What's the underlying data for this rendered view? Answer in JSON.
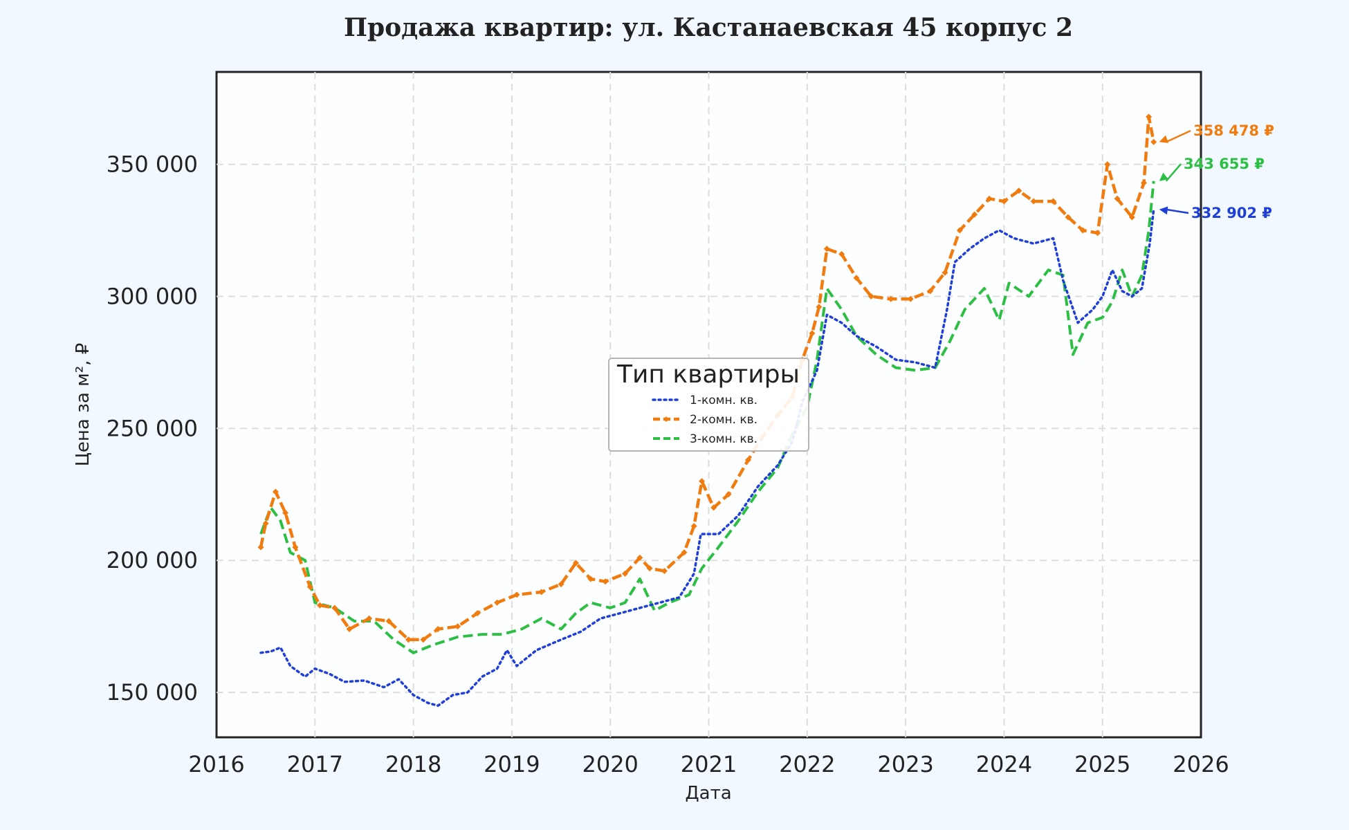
{
  "chart_data": {
    "type": "line",
    "title": "Продажа квартир: ул. Кастанаевская 45 корпус 2",
    "xlabel": "Дата",
    "ylabel": "Цена за м², ₽",
    "xlim": [
      2016,
      2026
    ],
    "ylim": [
      133000,
      385000
    ],
    "x_ticks": [
      "2016",
      "2017",
      "2018",
      "2019",
      "2020",
      "2021",
      "2022",
      "2023",
      "2024",
      "2025",
      "2026"
    ],
    "y_ticks": [
      150000,
      200000,
      250000,
      300000,
      350000
    ],
    "y_tick_labels": [
      "150 000",
      "200 000",
      "250 000",
      "300 000",
      "350 000"
    ],
    "grid": true,
    "legend": {
      "title": "Тип квартиры",
      "placement": "center"
    },
    "series": [
      {
        "name": "1-комн. кв.",
        "color": "#1f3fd6",
        "style": "dotted",
        "points": [
          [
            2016.45,
            165000
          ],
          [
            2016.55,
            165500
          ],
          [
            2016.65,
            167000
          ],
          [
            2016.75,
            160000
          ],
          [
            2016.9,
            156000
          ],
          [
            2017.0,
            159000
          ],
          [
            2017.15,
            157000
          ],
          [
            2017.3,
            154000
          ],
          [
            2017.5,
            154500
          ],
          [
            2017.7,
            152000
          ],
          [
            2017.85,
            155000
          ],
          [
            2018.0,
            149000
          ],
          [
            2018.15,
            146000
          ],
          [
            2018.25,
            145000
          ],
          [
            2018.4,
            149000
          ],
          [
            2018.55,
            150000
          ],
          [
            2018.7,
            156000
          ],
          [
            2018.85,
            159000
          ],
          [
            2018.95,
            166000
          ],
          [
            2019.05,
            160000
          ],
          [
            2019.25,
            166000
          ],
          [
            2019.5,
            170000
          ],
          [
            2019.7,
            173000
          ],
          [
            2019.9,
            178000
          ],
          [
            2020.1,
            180000
          ],
          [
            2020.3,
            182000
          ],
          [
            2020.5,
            184000
          ],
          [
            2020.7,
            186000
          ],
          [
            2020.85,
            195000
          ],
          [
            2020.92,
            210000
          ],
          [
            2021.1,
            210000
          ],
          [
            2021.3,
            217000
          ],
          [
            2021.5,
            228000
          ],
          [
            2021.7,
            236000
          ],
          [
            2021.85,
            245000
          ],
          [
            2021.95,
            260000
          ],
          [
            2022.1,
            272000
          ],
          [
            2022.2,
            293000
          ],
          [
            2022.35,
            290000
          ],
          [
            2022.5,
            285000
          ],
          [
            2022.7,
            281000
          ],
          [
            2022.9,
            276000
          ],
          [
            2023.1,
            275000
          ],
          [
            2023.3,
            273000
          ],
          [
            2023.42,
            295000
          ],
          [
            2023.5,
            313000
          ],
          [
            2023.65,
            318000
          ],
          [
            2023.8,
            322000
          ],
          [
            2023.95,
            325000
          ],
          [
            2024.1,
            322000
          ],
          [
            2024.3,
            320000
          ],
          [
            2024.5,
            322000
          ],
          [
            2024.6,
            306000
          ],
          [
            2024.75,
            290000
          ],
          [
            2024.9,
            295000
          ],
          [
            2025.0,
            300000
          ],
          [
            2025.1,
            310000
          ],
          [
            2025.2,
            302000
          ],
          [
            2025.3,
            300000
          ],
          [
            2025.4,
            303000
          ],
          [
            2025.48,
            320000
          ],
          [
            2025.52,
            332902
          ]
        ]
      },
      {
        "name": "2-комн. кв.",
        "color": "#f07c10",
        "style": "dashed-marker",
        "points": [
          [
            2016.45,
            205000
          ],
          [
            2016.5,
            214000
          ],
          [
            2016.6,
            226000
          ],
          [
            2016.7,
            218000
          ],
          [
            2016.8,
            205000
          ],
          [
            2016.95,
            190000
          ],
          [
            2017.05,
            183000
          ],
          [
            2017.2,
            182000
          ],
          [
            2017.35,
            174000
          ],
          [
            2017.55,
            178000
          ],
          [
            2017.75,
            177000
          ],
          [
            2017.95,
            170000
          ],
          [
            2018.1,
            170000
          ],
          [
            2018.25,
            174000
          ],
          [
            2018.45,
            175000
          ],
          [
            2018.65,
            180000
          ],
          [
            2018.85,
            184000
          ],
          [
            2019.05,
            187000
          ],
          [
            2019.3,
            188000
          ],
          [
            2019.5,
            191000
          ],
          [
            2019.65,
            199000
          ],
          [
            2019.8,
            193000
          ],
          [
            2019.95,
            192000
          ],
          [
            2020.15,
            195000
          ],
          [
            2020.3,
            201000
          ],
          [
            2020.4,
            197000
          ],
          [
            2020.55,
            196000
          ],
          [
            2020.75,
            203000
          ],
          [
            2020.85,
            213000
          ],
          [
            2020.93,
            230000
          ],
          [
            2021.05,
            220000
          ],
          [
            2021.2,
            225000
          ],
          [
            2021.4,
            238000
          ],
          [
            2021.55,
            247000
          ],
          [
            2021.7,
            255000
          ],
          [
            2021.85,
            262000
          ],
          [
            2021.95,
            276000
          ],
          [
            2022.05,
            286000
          ],
          [
            2022.12,
            296000
          ],
          [
            2022.2,
            318000
          ],
          [
            2022.35,
            316000
          ],
          [
            2022.5,
            307000
          ],
          [
            2022.65,
            300000
          ],
          [
            2022.85,
            299000
          ],
          [
            2023.05,
            299000
          ],
          [
            2023.25,
            302000
          ],
          [
            2023.4,
            309000
          ],
          [
            2023.55,
            325000
          ],
          [
            2023.7,
            331000
          ],
          [
            2023.85,
            337000
          ],
          [
            2024.0,
            336000
          ],
          [
            2024.15,
            340000
          ],
          [
            2024.3,
            336000
          ],
          [
            2024.5,
            336000
          ],
          [
            2024.65,
            330000
          ],
          [
            2024.8,
            325000
          ],
          [
            2024.95,
            324000
          ],
          [
            2025.05,
            350000
          ],
          [
            2025.15,
            337000
          ],
          [
            2025.3,
            330000
          ],
          [
            2025.42,
            343000
          ],
          [
            2025.47,
            368000
          ],
          [
            2025.52,
            358478
          ]
        ]
      },
      {
        "name": "3-комн. кв.",
        "color": "#2cbf43",
        "style": "dashed",
        "points": [
          [
            2016.45,
            210000
          ],
          [
            2016.55,
            220000
          ],
          [
            2016.65,
            215000
          ],
          [
            2016.75,
            203000
          ],
          [
            2016.9,
            200000
          ],
          [
            2017.0,
            184000
          ],
          [
            2017.2,
            182000
          ],
          [
            2017.4,
            177000
          ],
          [
            2017.6,
            177000
          ],
          [
            2017.8,
            170000
          ],
          [
            2018.0,
            165000
          ],
          [
            2018.2,
            168000
          ],
          [
            2018.45,
            171000
          ],
          [
            2018.7,
            172000
          ],
          [
            2018.9,
            172000
          ],
          [
            2019.1,
            174000
          ],
          [
            2019.3,
            178000
          ],
          [
            2019.5,
            174000
          ],
          [
            2019.65,
            180000
          ],
          [
            2019.8,
            184000
          ],
          [
            2020.0,
            182000
          ],
          [
            2020.15,
            184000
          ],
          [
            2020.3,
            193000
          ],
          [
            2020.45,
            181000
          ],
          [
            2020.6,
            184000
          ],
          [
            2020.8,
            187000
          ],
          [
            2020.93,
            197000
          ],
          [
            2021.1,
            205000
          ],
          [
            2021.3,
            215000
          ],
          [
            2021.5,
            226000
          ],
          [
            2021.7,
            235000
          ],
          [
            2021.85,
            248000
          ],
          [
            2022.0,
            258000
          ],
          [
            2022.1,
            276000
          ],
          [
            2022.2,
            303000
          ],
          [
            2022.35,
            295000
          ],
          [
            2022.5,
            285000
          ],
          [
            2022.7,
            278000
          ],
          [
            2022.9,
            273000
          ],
          [
            2023.1,
            272000
          ],
          [
            2023.3,
            273000
          ],
          [
            2023.45,
            283000
          ],
          [
            2023.6,
            295000
          ],
          [
            2023.8,
            303000
          ],
          [
            2023.95,
            291000
          ],
          [
            2024.05,
            305000
          ],
          [
            2024.25,
            300000
          ],
          [
            2024.45,
            310000
          ],
          [
            2024.6,
            308000
          ],
          [
            2024.7,
            278000
          ],
          [
            2024.85,
            290000
          ],
          [
            2025.0,
            292000
          ],
          [
            2025.1,
            298000
          ],
          [
            2025.2,
            310000
          ],
          [
            2025.3,
            300000
          ],
          [
            2025.4,
            308000
          ],
          [
            2025.47,
            325000
          ],
          [
            2025.52,
            343655
          ]
        ]
      }
    ],
    "annotations": [
      {
        "series": "2-комн. кв.",
        "text": "358 478 ₽",
        "color": "#f07c10",
        "x": 2025.52,
        "y": 358478
      },
      {
        "series": "3-комн. кв.",
        "text": "343 655 ₽",
        "color": "#2cbf43",
        "x": 2025.52,
        "y": 343655
      },
      {
        "series": "1-комн. кв.",
        "text": "332 902 ₽",
        "color": "#1f3fd6",
        "x": 2025.52,
        "y": 332902
      }
    ]
  }
}
